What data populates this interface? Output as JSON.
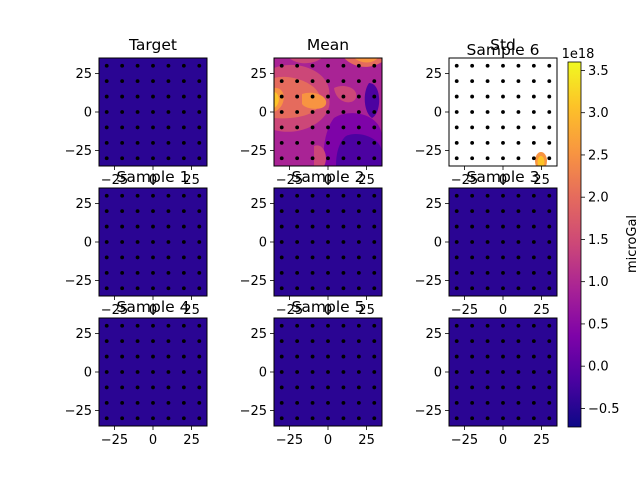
{
  "chart_data": {
    "type": "heatmap",
    "colormap": "plasma",
    "panels": [
      {
        "title": "Target",
        "fill": "uniform-low"
      },
      {
        "title": "Mean",
        "fill": "contour"
      },
      {
        "title": "Std",
        "fill": "mostly-white"
      },
      {
        "title": "Sample 6",
        "fill": "none"
      },
      {
        "title": "Sample 1",
        "fill": "uniform-low"
      },
      {
        "title": "Sample 2",
        "fill": "uniform-low"
      },
      {
        "title": "Sample 3",
        "fill": "uniform-low"
      },
      {
        "title": "Sample 4",
        "fill": "uniform-low"
      },
      {
        "title": "Sample 5",
        "fill": "uniform-low"
      },
      {
        "title": "",
        "fill": "uniform-low"
      }
    ],
    "x_ticks": [
      "−25",
      "0",
      "25"
    ],
    "x_tick_values": [
      -25,
      0,
      25
    ],
    "y_ticks": [
      "25",
      "0",
      "−25"
    ],
    "y_tick_values": [
      25,
      0,
      -25
    ],
    "xlim": [
      -35,
      35
    ],
    "ylim": [
      -35,
      35
    ],
    "station_grid": [
      -30,
      -20,
      -10,
      0,
      10,
      20,
      30
    ],
    "colorbar": {
      "label": "microGal",
      "offset_text": "1e18",
      "ticks": [
        "−0.5",
        "0.0",
        "0.5",
        "1.0",
        "1.5",
        "2.0",
        "2.5",
        "3.0",
        "3.5"
      ],
      "tick_values": [
        -0.5,
        0.0,
        0.5,
        1.0,
        1.5,
        2.0,
        2.5,
        3.0,
        3.5
      ],
      "range": [
        -0.72,
        3.6
      ]
    },
    "colors": {
      "low": "#2a0593",
      "station_dot": "#000000"
    }
  }
}
